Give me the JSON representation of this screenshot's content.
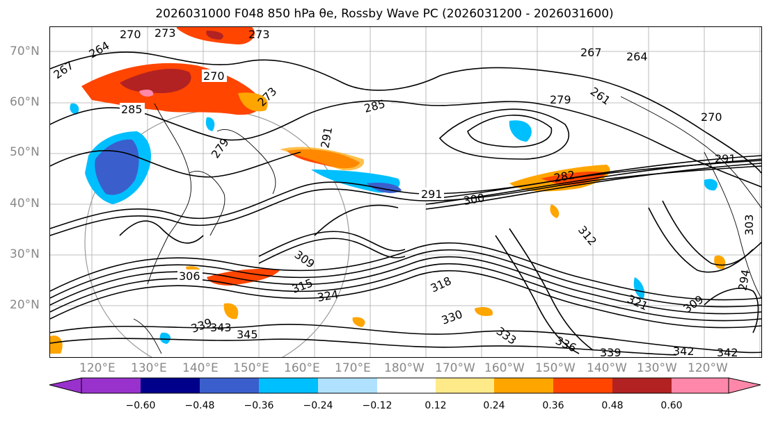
{
  "title": "2026031000 F048 850 hPa θe, Rossby Wave PC (2026031200 - 2026031600)",
  "lat_labels": [
    "70°N",
    "60°N",
    "50°N",
    "40°N",
    "30°N",
    "20°N"
  ],
  "lon_labels": [
    "120°E",
    "130°E",
    "140°E",
    "150°E",
    "160°E",
    "170°E",
    "180°W",
    "170°W",
    "160°W",
    "150°W",
    "140°W",
    "130°W",
    "120°W"
  ],
  "contour_labels": [
    "270",
    "273",
    "273",
    "264",
    "267",
    "285",
    "270",
    "273",
    "279",
    "291",
    "285",
    "291",
    "300",
    "282",
    "309",
    "306",
    "315",
    "324",
    "339",
    "343",
    "345",
    "318",
    "330",
    "333",
    "336",
    "339",
    "342",
    "342",
    "267",
    "264",
    "261",
    "270",
    "279",
    "291",
    "312",
    "309",
    "321",
    "294",
    "303"
  ],
  "colorbar": {
    "tick_labels": [
      "−0.60",
      "−0.48",
      "−0.36",
      "−0.24",
      "−0.12",
      "0.12",
      "0.24",
      "0.36",
      "0.48",
      "0.60"
    ],
    "colors": [
      "#9932cc",
      "#00008b",
      "#3a5fcd",
      "#00bfff",
      "#b0e2ff",
      "#ffffff",
      "#ffea8a",
      "#ffa500",
      "#ff4500",
      "#b22222",
      "#ff88aa"
    ]
  }
}
